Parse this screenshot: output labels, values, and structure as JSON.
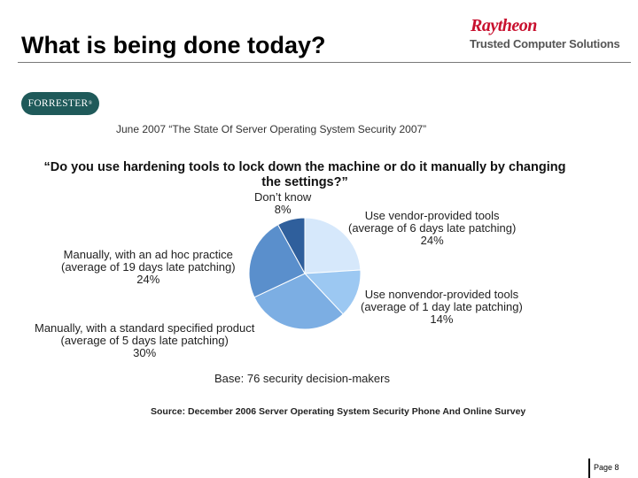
{
  "slide": {
    "title": "What is being done today?",
    "brand_name": "Raytheon",
    "brand_tagline": "Trusted Computer Solutions",
    "logo_text": "FORRESTER",
    "source_line": "June 2007 “The State Of Server Operating System Security 2007”",
    "page_label": "Page 8"
  },
  "chart_data": {
    "type": "pie",
    "title": "“Do you use hardening tools to lock down the machine or do it manually by changing the settings?”",
    "base_note": "Base: 76 security decision-makers",
    "source_note": "Source: December 2006 Server Operating System Security Phone And Online Survey",
    "slices": [
      {
        "label_lines": [
          "Use vendor-provided tools",
          "(average of 6 days late patching)"
        ],
        "value": 24,
        "value_label": "24%",
        "color": "#d6e8fb"
      },
      {
        "label_lines": [
          "Use nonvendor-provided tools",
          "(average of 1 day late patching)"
        ],
        "value": 14,
        "value_label": "14%",
        "color": "#9cc8f2"
      },
      {
        "label_lines": [
          "Manually, with a standard specified product",
          "(average of 5 days late patching)"
        ],
        "value": 30,
        "value_label": "30%",
        "color": "#7caee3"
      },
      {
        "label_lines": [
          "Manually, with an ad hoc practice",
          "(average of 19 days late patching)"
        ],
        "value": 24,
        "value_label": "24%",
        "color": "#5a8fcc"
      },
      {
        "label_lines": [
          "Don’t know"
        ],
        "value": 8,
        "value_label": "8%",
        "color": "#2f5f9c"
      }
    ]
  }
}
